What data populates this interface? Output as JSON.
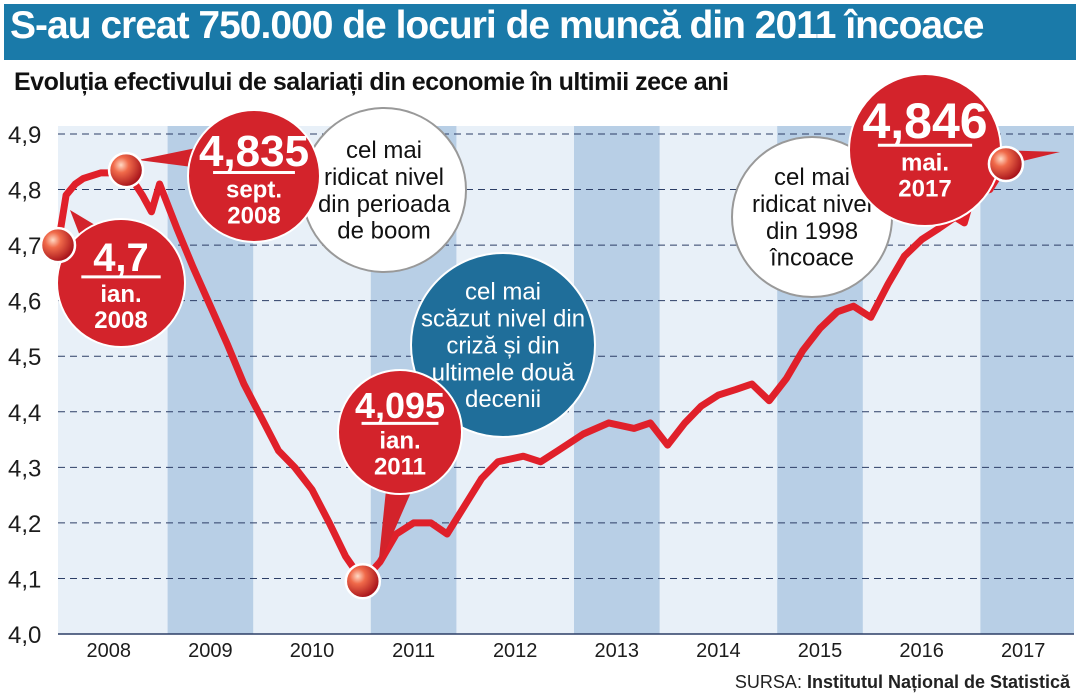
{
  "header": {
    "title": "S-au creat 750.000 de locuri de muncă din 2011 încoace",
    "subtitle": "Evoluția efectivului de salariați din economie în ultimii zece ani"
  },
  "source": {
    "prefix": "SURSA:",
    "name": "Institutul Național de Statistică"
  },
  "colors": {
    "header_bg": "#1a7aa9",
    "plot_bg": "#e8f0f8",
    "band": "#b8cfe6",
    "line": "#e0202a",
    "callout_red": "#d3232b",
    "callout_blue": "#1f6e9a",
    "grid": "#2c3e66"
  },
  "chart_data": {
    "type": "line",
    "title": "S-au creat 750.000 de locuri de muncă din 2011 încoace",
    "subtitle": "Evoluția efectivului de salariați din economie în ultimii zece ani",
    "xlabel": "",
    "ylabel": "",
    "ylim": [
      4.0,
      4.9
    ],
    "y_ticks": [
      "4,0",
      "4,1",
      "4,2",
      "4,3",
      "4,4",
      "4,5",
      "4,6",
      "4,7",
      "4,8",
      "4,9"
    ],
    "x_ticks": [
      "2008",
      "2009",
      "2010",
      "2011",
      "2012",
      "2013",
      "2014",
      "2015",
      "2016",
      "2017"
    ],
    "grid": true,
    "series": [
      {
        "values": [
          [
            2008.0,
            4.7
          ],
          [
            2008.08,
            4.79
          ],
          [
            2008.17,
            4.81
          ],
          [
            2008.25,
            4.82
          ],
          [
            2008.42,
            4.83
          ],
          [
            2008.58,
            4.83
          ],
          [
            2008.67,
            4.835
          ],
          [
            2008.83,
            4.79
          ],
          [
            2008.92,
            4.76
          ],
          [
            2009.0,
            4.81
          ],
          [
            2009.17,
            4.73
          ],
          [
            2009.33,
            4.66
          ],
          [
            2009.5,
            4.59
          ],
          [
            2009.67,
            4.52
          ],
          [
            2009.83,
            4.45
          ],
          [
            2010.0,
            4.39
          ],
          [
            2010.17,
            4.33
          ],
          [
            2010.33,
            4.3
          ],
          [
            2010.5,
            4.26
          ],
          [
            2010.67,
            4.2
          ],
          [
            2010.83,
            4.14
          ],
          [
            2011.0,
            4.095
          ],
          [
            2011.17,
            4.13
          ],
          [
            2011.33,
            4.18
          ],
          [
            2011.5,
            4.2
          ],
          [
            2011.67,
            4.2
          ],
          [
            2011.83,
            4.18
          ],
          [
            2012.0,
            4.23
          ],
          [
            2012.17,
            4.28
          ],
          [
            2012.33,
            4.31
          ],
          [
            2012.58,
            4.32
          ],
          [
            2012.75,
            4.31
          ],
          [
            2012.92,
            4.33
          ],
          [
            2013.17,
            4.36
          ],
          [
            2013.42,
            4.38
          ],
          [
            2013.67,
            4.37
          ],
          [
            2013.83,
            4.38
          ],
          [
            2014.0,
            4.34
          ],
          [
            2014.17,
            4.38
          ],
          [
            2014.33,
            4.41
          ],
          [
            2014.5,
            4.43
          ],
          [
            2014.67,
            4.44
          ],
          [
            2014.83,
            4.45
          ],
          [
            2015.0,
            4.42
          ],
          [
            2015.17,
            4.46
          ],
          [
            2015.33,
            4.51
          ],
          [
            2015.5,
            4.55
          ],
          [
            2015.67,
            4.58
          ],
          [
            2015.83,
            4.59
          ],
          [
            2016.0,
            4.57
          ],
          [
            2016.17,
            4.63
          ],
          [
            2016.33,
            4.68
          ],
          [
            2016.5,
            4.71
          ],
          [
            2016.67,
            4.73
          ],
          [
            2016.83,
            4.75
          ],
          [
            2016.92,
            4.74
          ],
          [
            2017.0,
            4.79
          ],
          [
            2017.17,
            4.8
          ],
          [
            2017.33,
            4.846
          ]
        ]
      }
    ],
    "markers": [
      {
        "x": 2008.0,
        "y": 4.7
      },
      {
        "x": 2008.67,
        "y": 4.835
      },
      {
        "x": 2011.0,
        "y": 4.095
      },
      {
        "x": 2017.33,
        "y": 4.846
      }
    ],
    "annotations": {
      "red": [
        {
          "value": "4,7",
          "lines": [
            "ian.",
            "2008"
          ]
        },
        {
          "value": "4,835",
          "lines": [
            "sept.",
            "2008"
          ]
        },
        {
          "value": "4,095",
          "lines": [
            "ian.",
            "2011"
          ]
        },
        {
          "value": "4,846",
          "lines": [
            "mai.",
            "2017"
          ]
        }
      ],
      "white": [
        {
          "lines": [
            "cel mai",
            "ridicat nivel",
            "din perioada",
            "de boom"
          ]
        },
        {
          "lines": [
            "cel mai",
            "ridicat nivel",
            "din 1998",
            "încoace"
          ]
        }
      ],
      "blue": [
        {
          "lines": [
            "cel mai",
            "scăzut nivel din",
            "criză și din",
            "ultimele două",
            "decenii"
          ]
        }
      ]
    }
  }
}
